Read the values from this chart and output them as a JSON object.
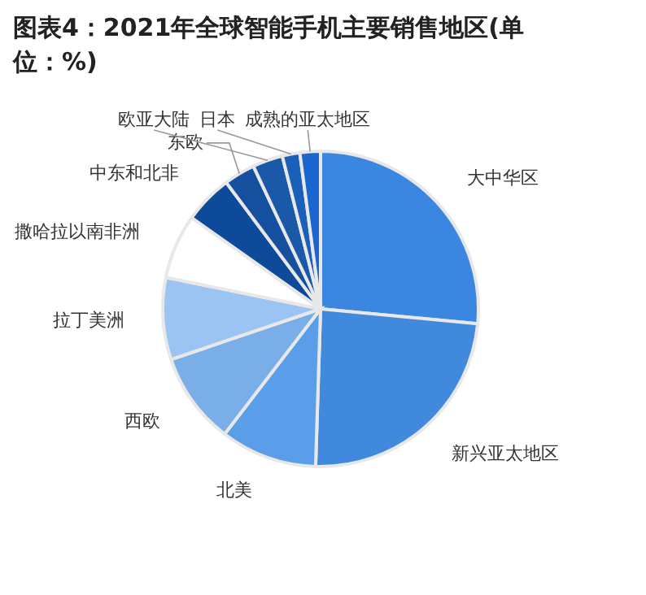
{
  "chart_data": {
    "type": "pie",
    "title": "图表4：2021年全球智能手机主要销售地区(单位：%)",
    "categories": [
      "大中华区",
      "新兴亚太地区",
      "北美",
      "西欧",
      "拉丁美洲",
      "撒哈拉以南非洲",
      "中东和北非",
      "东欧",
      "欧亚大陆",
      "日本",
      "成熟的亚太地区"
    ],
    "values": [
      26.5,
      24,
      9.9,
      9.4,
      8.4,
      6.6,
      5,
      3.2,
      3.1,
      1.8,
      2.1
    ],
    "colors": [
      "#3a86e0",
      "#4089dd",
      "#5a9de8",
      "#7aaee8",
      "#9cc4f2",
      "#ffffff",
      "#0d4a9a",
      "#15509e",
      "#1a58a8",
      "#1a5fb8",
      "#1a66cf"
    ]
  }
}
